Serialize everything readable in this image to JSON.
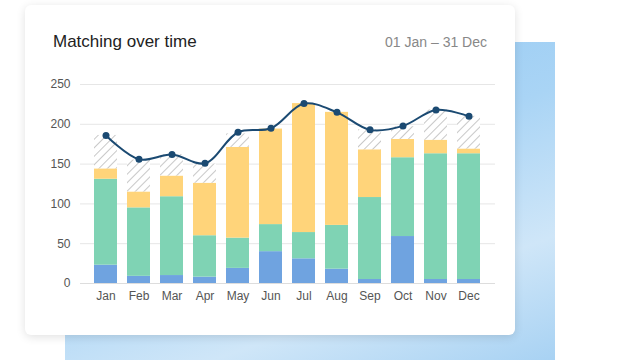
{
  "chart_data": {
    "type": "bar",
    "title": "Matching over time",
    "subtitle": "01 Jan – 31 Dec",
    "categories": [
      "Jan",
      "Feb",
      "Mar",
      "Apr",
      "May",
      "Jun",
      "Jul",
      "Aug",
      "Sep",
      "Oct",
      "Nov",
      "Dec"
    ],
    "stacked": true,
    "series": [
      {
        "color": "#6fa3e0",
        "values": [
          23,
          9,
          10,
          8,
          19,
          40,
          31,
          18,
          5,
          59,
          5,
          5
        ]
      },
      {
        "color": "#7fd3b4",
        "values": [
          108,
          86,
          99,
          52,
          38,
          34,
          33,
          55,
          103,
          99,
          158,
          158
        ]
      },
      {
        "color": "#ffd47a",
        "values": [
          13,
          20,
          26,
          66,
          114,
          120,
          162,
          142,
          60,
          23,
          17,
          6
        ]
      },
      {
        "color": "#c8c8c8",
        "line_style": "hatched",
        "values": [
          42,
          40,
          27,
          24,
          17,
          0,
          0,
          0,
          25,
          16,
          38,
          41
        ]
      },
      {
        "type": "line",
        "color": "#1b4a72",
        "marker": "circle",
        "values": [
          186,
          156,
          162,
          151,
          190,
          195,
          226,
          215,
          193,
          198,
          218,
          210
        ]
      }
    ],
    "ylim": [
      0,
      250
    ],
    "yticks": [
      0,
      50,
      100,
      150,
      200,
      250
    ],
    "grid": true
  }
}
